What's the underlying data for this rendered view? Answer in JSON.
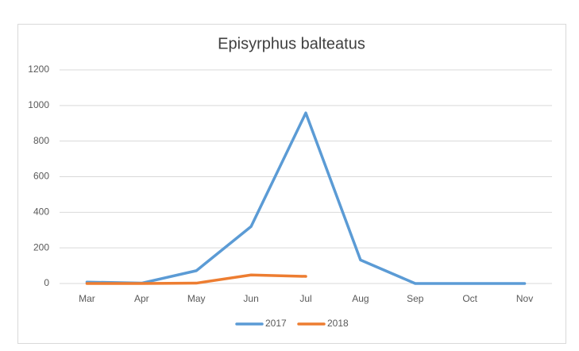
{
  "chart_data": {
    "type": "line",
    "title": "Episyrphus balteatus",
    "categories": [
      "Mar",
      "Apr",
      "May",
      "Jun",
      "Jul",
      "Aug",
      "Sep",
      "Oct",
      "Nov"
    ],
    "series": [
      {
        "name": "2017",
        "color": "#5b9bd5",
        "values": [
          8,
          2,
          72,
          320,
          958,
          132,
          0,
          0,
          0
        ]
      },
      {
        "name": "2018",
        "color": "#ed7d31",
        "values": [
          0,
          0,
          2,
          48,
          40,
          null,
          null,
          null,
          null
        ]
      }
    ],
    "ylim": [
      0,
      1200
    ],
    "yticks": [
      0,
      200,
      400,
      600,
      800,
      1000,
      1200
    ],
    "grid": true,
    "legend": "bottom"
  }
}
